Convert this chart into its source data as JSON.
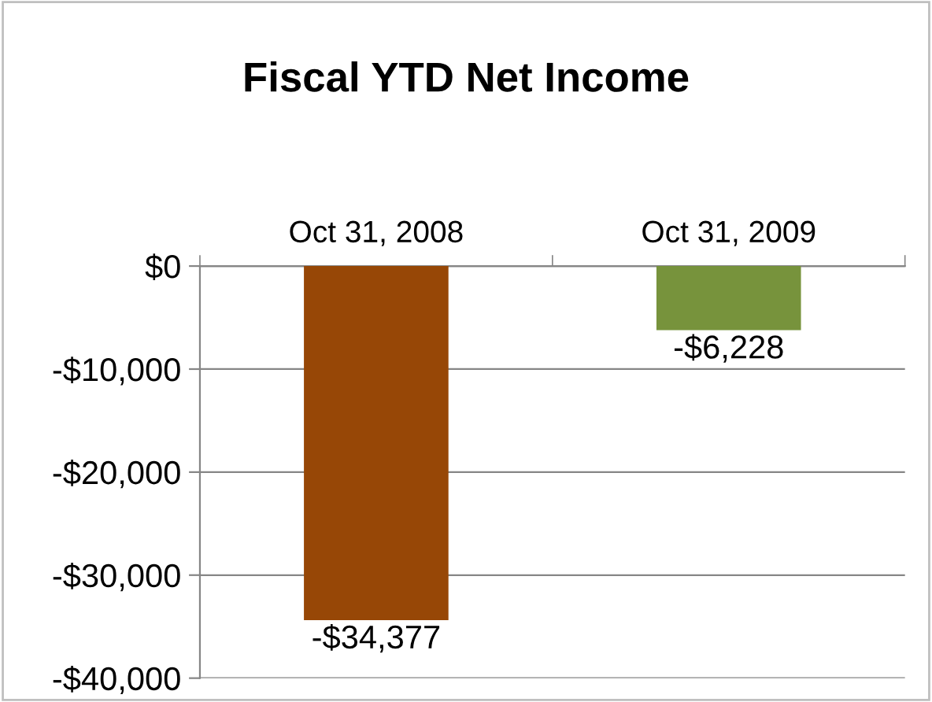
{
  "chart_data": {
    "type": "bar",
    "title": "Fiscal YTD Net Income",
    "categories": [
      "Oct 31, 2008",
      "Oct 31, 2009"
    ],
    "values": [
      -34377,
      -6228
    ],
    "colors": [
      "#974706",
      "#77933c"
    ],
    "value_labels": [
      "-$34,377",
      "-$6,228"
    ],
    "ylim": [
      -40000,
      0
    ],
    "yticks": [
      {
        "value": 0,
        "label": "$0"
      },
      {
        "value": -10000,
        "label": "-$10,000"
      },
      {
        "value": -20000,
        "label": "-$20,000"
      },
      {
        "value": -30000,
        "label": "-$30,000"
      },
      {
        "value": -40000,
        "label": "-$40,000"
      }
    ],
    "grid": "y",
    "legend": false
  }
}
